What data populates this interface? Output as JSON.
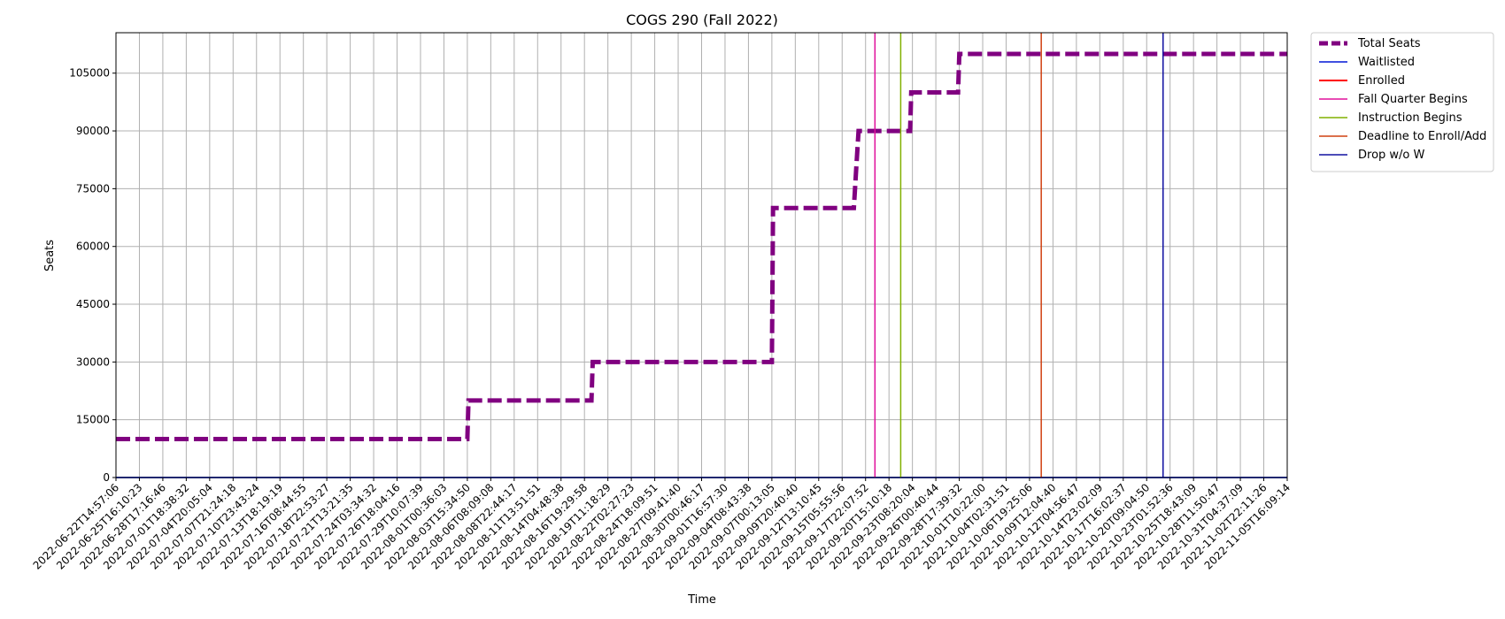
{
  "chart_data": {
    "type": "line",
    "title": "COGS 290 (Fall 2022)",
    "xlabel": "Time",
    "ylabel": "Seats",
    "ylim": [
      0,
      115500
    ],
    "yticks": [
      0,
      15000,
      30000,
      45000,
      60000,
      75000,
      90000,
      105000
    ],
    "grid": true,
    "legend_position": "outside-top-right",
    "x_ticks": [
      "2022-06-22T14:57:06",
      "2022-06-25T16:10:23",
      "2022-06-28T17:16:46",
      "2022-07-01T18:38:32",
      "2022-07-04T20:05:04",
      "2022-07-07T21:24:18",
      "2022-07-10T23:43:24",
      "2022-07-13T18:19:19",
      "2022-07-16T08:44:55",
      "2022-07-18T22:53:27",
      "2022-07-21T13:21:35",
      "2022-07-24T03:34:32",
      "2022-07-26T18:04:16",
      "2022-07-29T10:07:39",
      "2022-08-01T00:36:03",
      "2022-08-03T15:34:50",
      "2022-08-06T08:09:08",
      "2022-08-08T22:44:17",
      "2022-08-11T13:51:51",
      "2022-08-14T04:48:38",
      "2022-08-16T19:29:58",
      "2022-08-19T11:18:29",
      "2022-08-22T02:27:23",
      "2022-08-24T18:09:51",
      "2022-08-27T09:41:40",
      "2022-08-30T00:46:17",
      "2022-09-01T16:57:30",
      "2022-09-04T08:43:38",
      "2022-09-07T00:13:05",
      "2022-09-09T20:40:40",
      "2022-09-12T13:10:45",
      "2022-09-15T05:55:56",
      "2022-09-17T22:07:52",
      "2022-09-20T15:10:18",
      "2022-09-23T08:20:04",
      "2022-09-26T00:40:44",
      "2022-09-28T17:39:32",
      "2022-10-01T10:22:00",
      "2022-10-04T02:31:51",
      "2022-10-06T19:25:06",
      "2022-10-09T12:04:40",
      "2022-10-12T04:56:47",
      "2022-10-14T23:02:09",
      "2022-10-17T16:02:37",
      "2022-10-20T09:04:50",
      "2022-10-23T01:52:36",
      "2022-10-25T18:43:09",
      "2022-10-28T11:50:47",
      "2022-10-31T04:37:09",
      "2022-11-02T22:11:26",
      "2022-11-05T16:09:14"
    ],
    "series": [
      {
        "name": "Total Seats",
        "color": "#800080",
        "style": "dashed",
        "points": [
          [
            0,
            10000
          ],
          [
            15,
            10000
          ],
          [
            15.05,
            20000
          ],
          [
            20.3,
            20000
          ],
          [
            20.35,
            30000
          ],
          [
            28,
            30000
          ],
          [
            28.05,
            70000
          ],
          [
            31.5,
            70000
          ],
          [
            31.6,
            80000
          ],
          [
            31.7,
            90000
          ],
          [
            33.9,
            90000
          ],
          [
            33.95,
            100000
          ],
          [
            35.95,
            100000
          ],
          [
            36,
            110000
          ],
          [
            50,
            110000
          ]
        ]
      },
      {
        "name": "Waitlisted",
        "color": "#4050e0",
        "style": "solid",
        "points": [
          [
            0,
            0
          ],
          [
            50,
            0
          ]
        ]
      },
      {
        "name": "Enrolled",
        "color": "#ff0000",
        "style": "solid",
        "points": [
          [
            0,
            0
          ],
          [
            50,
            0
          ]
        ]
      }
    ],
    "events": [
      {
        "name": "Fall Quarter Begins",
        "color": "#e0109c",
        "x": 32.4
      },
      {
        "name": "Instruction Begins",
        "color": "#80b000",
        "x": 33.5
      },
      {
        "name": "Deadline to Enroll/Add",
        "color": "#d04010",
        "x": 39.5
      },
      {
        "name": "Drop w/o W",
        "color": "#1010a0",
        "x": 44.7
      }
    ]
  }
}
